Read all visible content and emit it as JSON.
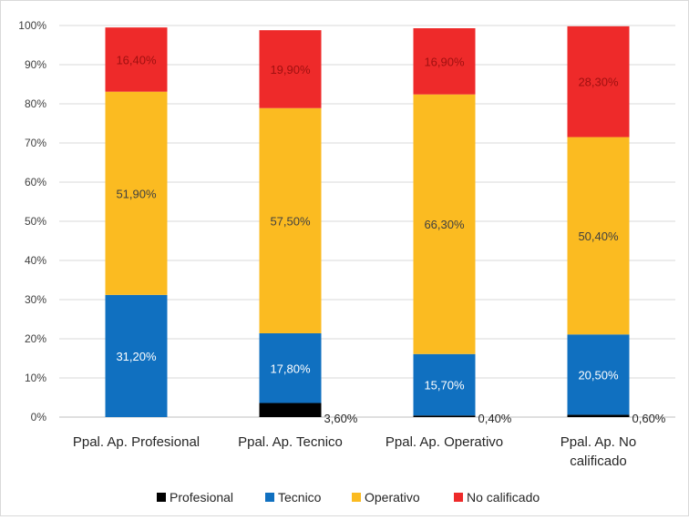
{
  "chart_data": {
    "type": "bar",
    "stacked": true,
    "percent": true,
    "categories": [
      [
        "Ppal. Ap. Profesional"
      ],
      [
        "Ppal. Ap. Tecnico"
      ],
      [
        "Ppal. Ap. Operativo"
      ],
      [
        "Ppal. Ap. No",
        "calificado"
      ]
    ],
    "series": [
      {
        "name": "Profesional",
        "color": "#000000",
        "values": [
          0,
          3.6,
          0.4,
          0.6
        ],
        "labels": [
          "",
          "3,60%",
          "0,40%",
          "0,60%"
        ],
        "label_position": "outside-right"
      },
      {
        "name": "Tecnico",
        "color": "#1070c0",
        "values": [
          31.2,
          17.8,
          15.7,
          20.5
        ],
        "labels": [
          "31,20%",
          "17,80%",
          "15,70%",
          "20,50%"
        ],
        "label_color": "#ffffff"
      },
      {
        "name": "Operativo",
        "color": "#fbbb21",
        "values": [
          51.9,
          57.5,
          66.3,
          50.4
        ],
        "labels": [
          "51,90%",
          "57,50%",
          "66,30%",
          "50,40%"
        ],
        "label_color": "#404040"
      },
      {
        "name": "No calificado",
        "color": "#ee2a2a",
        "values": [
          16.4,
          19.9,
          16.9,
          28.3
        ],
        "labels": [
          "16,40%",
          "19,90%",
          "16,90%",
          "28,30%"
        ],
        "label_color": "#a01010"
      }
    ],
    "y_ticks": [
      "0%",
      "10%",
      "20%",
      "30%",
      "40%",
      "50%",
      "60%",
      "70%",
      "80%",
      "90%",
      "100%"
    ],
    "ylim": [
      0,
      100
    ],
    "grid": true,
    "legend_position": "bottom"
  }
}
